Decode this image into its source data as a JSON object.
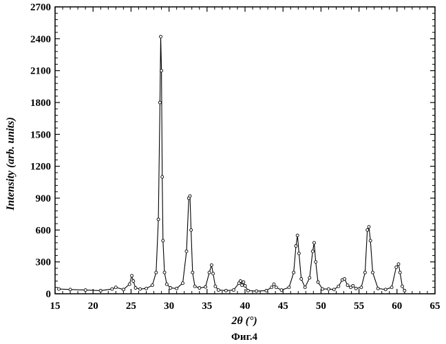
{
  "chart_data": {
    "type": "line",
    "xlabel": "2θ (°)",
    "ylabel": "Intensity (arb. units)",
    "caption": "Фиг.4",
    "xlim": [
      15,
      65
    ],
    "ylim": [
      0,
      2700
    ],
    "xticks": [
      15,
      20,
      25,
      30,
      35,
      40,
      45,
      50,
      55,
      60,
      65
    ],
    "yticks": [
      0,
      300,
      600,
      900,
      1200,
      1500,
      1800,
      2100,
      2400,
      2700
    ],
    "grid": false,
    "markers": "open-circle",
    "series": [
      {
        "x": [
          15.5,
          17,
          19,
          21,
          22.5,
          23.0,
          24.0,
          24.8,
          25.1,
          25.3,
          25.6,
          26.2,
          27.0,
          27.8,
          28.3,
          28.6,
          28.8,
          28.9,
          29.0,
          29.1,
          29.2,
          29.4,
          29.7,
          30.2,
          31.0,
          31.8,
          32.3,
          32.6,
          32.75,
          32.9,
          33.1,
          33.4,
          34.0,
          34.8,
          35.3,
          35.6,
          35.8,
          36.1,
          36.5,
          37.5,
          38.5,
          39.2,
          39.4,
          39.6,
          39.8,
          40.0,
          40.4,
          41.5,
          42.8,
          43.5,
          43.8,
          44.1,
          44.8,
          45.8,
          46.4,
          46.7,
          46.9,
          47.1,
          47.4,
          47.9,
          48.5,
          48.9,
          49.1,
          49.3,
          49.6,
          50.2,
          51.0,
          51.7,
          52.3,
          52.8,
          53.1,
          53.5,
          53.9,
          54.2,
          54.6,
          55.3,
          55.8,
          56.1,
          56.3,
          56.5,
          56.8,
          57.5,
          58.5,
          59.3,
          59.9,
          60.2,
          60.4,
          60.7,
          61.0
        ],
        "y": [
          45,
          40,
          35,
          30,
          45,
          60,
          40,
          90,
          170,
          120,
          55,
          45,
          50,
          80,
          200,
          700,
          1800,
          2420,
          2100,
          1100,
          500,
          200,
          90,
          55,
          50,
          100,
          400,
          900,
          920,
          600,
          200,
          70,
          55,
          65,
          200,
          270,
          190,
          70,
          35,
          30,
          35,
          100,
          120,
          80,
          110,
          75,
          30,
          25,
          30,
          60,
          90,
          60,
          35,
          60,
          200,
          450,
          550,
          380,
          140,
          60,
          150,
          400,
          480,
          300,
          110,
          45,
          45,
          40,
          70,
          130,
          140,
          80,
          60,
          75,
          50,
          60,
          200,
          600,
          630,
          500,
          200,
          50,
          40,
          60,
          250,
          280,
          200,
          70,
          30
        ]
      }
    ]
  }
}
